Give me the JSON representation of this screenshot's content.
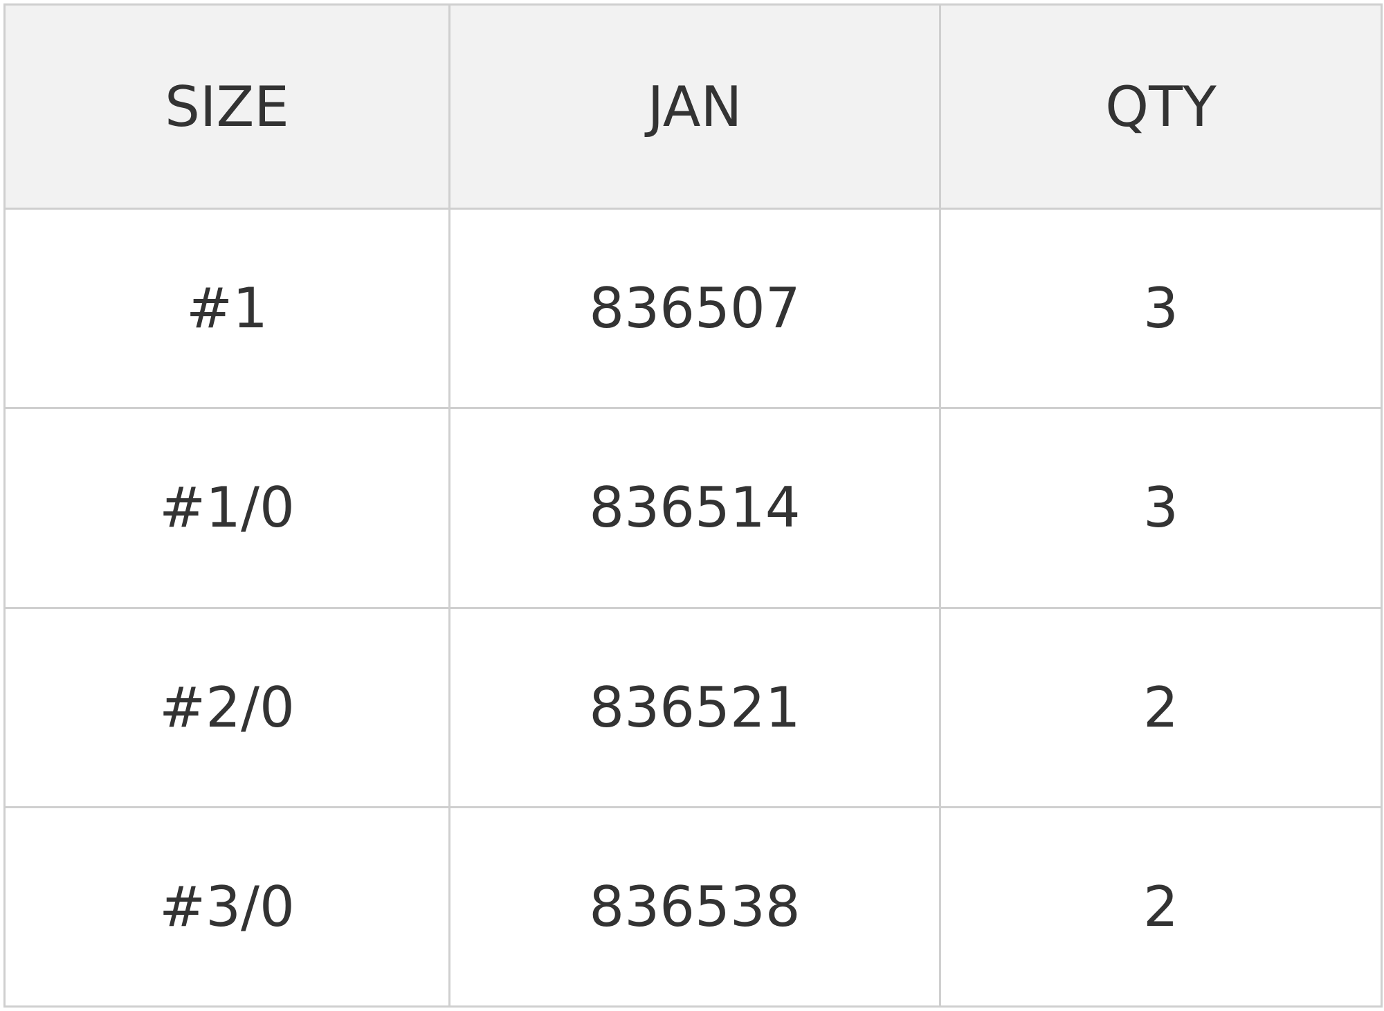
{
  "table": {
    "headers": [
      "SIZE",
      "JAN",
      "QTY"
    ],
    "rows": [
      [
        "#1",
        "836507",
        "3"
      ],
      [
        "#1/0",
        "836514",
        "3"
      ],
      [
        "#2/0",
        "836521",
        "2"
      ],
      [
        "#3/0",
        "836538",
        "2"
      ]
    ]
  },
  "colors": {
    "header_bg": "#f2f2f2",
    "border": "#cfcfcf",
    "text": "#333333"
  }
}
